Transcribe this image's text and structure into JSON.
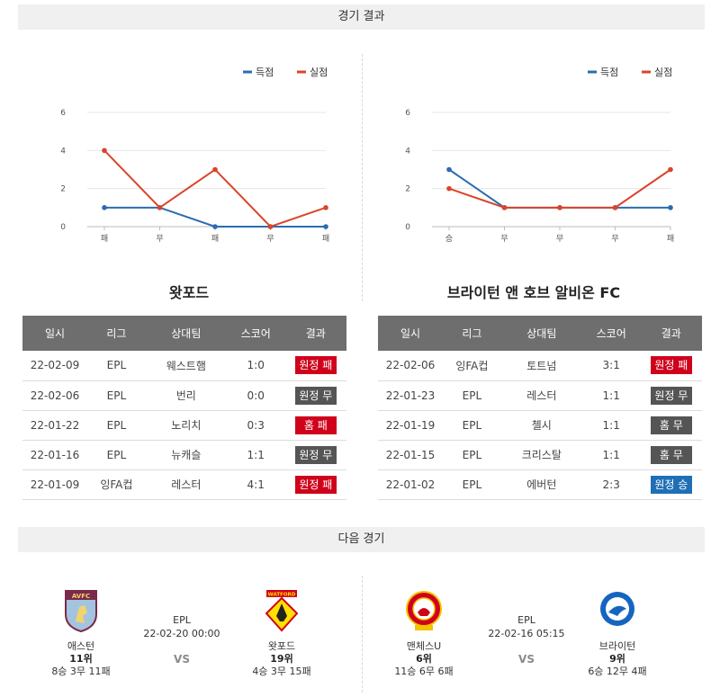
{
  "sections": {
    "results_title": "경기 결과",
    "next_title": "다음 경기"
  },
  "colors": {
    "scored": "#2b6cb0",
    "conceded": "#d9452b",
    "away_loss": "#d0021b",
    "draw": "#555555",
    "home_loss": "#d0021b",
    "away_win": "#1f6fb7"
  },
  "legend": {
    "scored": "득점",
    "conceded": "실점"
  },
  "teams": [
    {
      "name": "왓포드",
      "chart_data": {
        "type": "line",
        "categories": [
          "패",
          "무",
          "패",
          "무",
          "패"
        ],
        "series": [
          {
            "name": "득점",
            "values": [
              1,
              1,
              0,
              0,
              0
            ]
          },
          {
            "name": "실점",
            "values": [
              4,
              1,
              3,
              0,
              1
            ]
          }
        ],
        "ylim": [
          0,
          6
        ],
        "yticks": [
          "0",
          "2",
          "4",
          "6"
        ],
        "grid": true,
        "legend": "top-right"
      },
      "table": {
        "headers": [
          "일시",
          "리그",
          "상대팀",
          "스코어",
          "결과"
        ],
        "rows": [
          {
            "date": "22-02-09",
            "league": "EPL",
            "opponent": "웨스트햄",
            "score": "1:0",
            "result": "원정 패",
            "color": "#d0021b"
          },
          {
            "date": "22-02-06",
            "league": "EPL",
            "opponent": "번리",
            "score": "0:0",
            "result": "원정 무",
            "color": "#555555"
          },
          {
            "date": "22-01-22",
            "league": "EPL",
            "opponent": "노리치",
            "score": "0:3",
            "result": "홈 패",
            "color": "#d0021b"
          },
          {
            "date": "22-01-16",
            "league": "EPL",
            "opponent": "뉴캐슬",
            "score": "1:1",
            "result": "원정 무",
            "color": "#555555"
          },
          {
            "date": "22-01-09",
            "league": "잉FA컵",
            "opponent": "레스터",
            "score": "4:1",
            "result": "원정 패",
            "color": "#d0021b"
          }
        ]
      }
    },
    {
      "name": "브라이턴 앤 호브 알비온 FC",
      "chart_data": {
        "type": "line",
        "categories": [
          "승",
          "무",
          "무",
          "무",
          "패"
        ],
        "series": [
          {
            "name": "득점",
            "values": [
              3,
              1,
              1,
              1,
              1
            ]
          },
          {
            "name": "실점",
            "values": [
              2,
              1,
              1,
              1,
              3
            ]
          }
        ],
        "ylim": [
          0,
          6
        ],
        "yticks": [
          "0",
          "2",
          "4",
          "6"
        ],
        "grid": true,
        "legend": "top-right"
      },
      "table": {
        "headers": [
          "일시",
          "리그",
          "상대팀",
          "스코어",
          "결과"
        ],
        "rows": [
          {
            "date": "22-02-06",
            "league": "잉FA컵",
            "opponent": "토트넘",
            "score": "3:1",
            "result": "원정 패",
            "color": "#d0021b"
          },
          {
            "date": "22-01-23",
            "league": "EPL",
            "opponent": "레스터",
            "score": "1:1",
            "result": "원정 무",
            "color": "#555555"
          },
          {
            "date": "22-01-19",
            "league": "EPL",
            "opponent": "첼시",
            "score": "1:1",
            "result": "홈 무",
            "color": "#555555"
          },
          {
            "date": "22-01-15",
            "league": "EPL",
            "opponent": "크리스탈",
            "score": "1:1",
            "result": "홈 무",
            "color": "#555555"
          },
          {
            "date": "22-01-02",
            "league": "EPL",
            "opponent": "에버턴",
            "score": "2:3",
            "result": "원정 승",
            "color": "#1f6fb7"
          }
        ]
      }
    }
  ],
  "next_matches": [
    {
      "league": "EPL",
      "datetime": "22-02-20 00:00",
      "vs": "VS",
      "home": {
        "name": "애스턴",
        "rank": "11위",
        "record": "8승 3무 11패",
        "crest": "aston-villa-crest",
        "crest_text": "AVFC"
      },
      "away": {
        "name": "왓포드",
        "rank": "19위",
        "record": "4승 3무 15패",
        "crest": "watford-crest",
        "crest_text": "WATFORD"
      }
    },
    {
      "league": "EPL",
      "datetime": "22-02-16 05:15",
      "vs": "VS",
      "home": {
        "name": "맨체스U",
        "rank": "6위",
        "record": "11승 6무 6패",
        "crest": "manchester-united-crest",
        "crest_text": ""
      },
      "away": {
        "name": "브라이턴",
        "rank": "9위",
        "record": "6승 12무 4패",
        "crest": "brighton-crest",
        "crest_text": ""
      }
    }
  ]
}
